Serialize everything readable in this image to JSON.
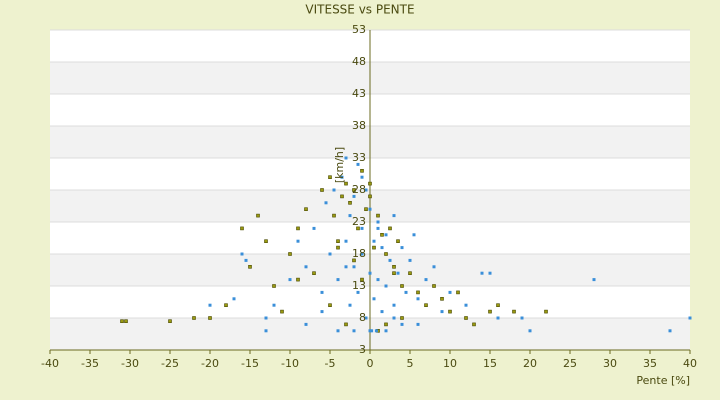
{
  "chart_data": {
    "type": "scatter",
    "title": "VITESSE vs PENTE",
    "y_label": "[km/h]",
    "x_label": "Pente [%]",
    "xlim": [
      -40,
      40
    ],
    "xticks": [
      -40,
      -35,
      -30,
      -25,
      -20,
      -15,
      -10,
      -5,
      0,
      5,
      10,
      15,
      20,
      25,
      30,
      35,
      40
    ],
    "ylim": [
      3,
      53
    ],
    "yticks": [
      3,
      8,
      13,
      18,
      23,
      28,
      33,
      38,
      43,
      48,
      53
    ],
    "grid": true,
    "series": [
      {
        "color": "#9a9a10",
        "x": [
          -31,
          -30.5,
          -25,
          -22,
          -20,
          -18,
          -15,
          -14,
          -13,
          -12,
          -11,
          -10,
          -9,
          -8,
          -7,
          -6,
          -5,
          -4.5,
          -4,
          -3.5,
          -3,
          -2.5,
          -2,
          -1.5,
          -1,
          -0.5,
          0,
          0.5,
          1,
          1.5,
          2,
          2.5,
          3,
          3.5,
          4,
          5,
          6,
          7,
          8,
          9,
          10,
          11,
          12,
          13,
          15,
          16,
          18,
          22,
          -5,
          -3,
          -2,
          0,
          1,
          2,
          4,
          -16,
          -9,
          -4,
          -1,
          3
        ],
        "values": [
          7.5,
          7.5,
          7.5,
          8,
          8,
          10,
          16,
          24,
          20,
          13,
          9,
          18,
          22,
          25,
          15,
          28,
          30,
          24,
          20,
          27,
          29,
          26,
          28,
          22,
          31,
          25,
          27,
          19,
          24,
          21,
          18,
          22,
          16,
          20,
          13,
          15,
          12,
          10,
          13,
          11,
          9,
          12,
          8,
          7,
          9,
          10,
          9,
          9,
          10,
          7,
          17,
          29,
          6,
          7,
          8,
          22,
          14,
          19,
          14,
          15
        ]
      },
      {
        "color": "#3a8fd9",
        "x": [
          -16,
          -15.5,
          -13,
          -12,
          -10,
          -9,
          -8,
          -7,
          -6,
          -5.5,
          -5,
          -4.5,
          -4,
          -3.5,
          -3,
          -3,
          -2.5,
          -2.5,
          -2,
          -2,
          -1.5,
          -1.5,
          -1,
          -1,
          -0.5,
          -0.5,
          0,
          0,
          0,
          0.5,
          0.5,
          1,
          1,
          1.5,
          1.5,
          2,
          2,
          2.5,
          3,
          3,
          3.5,
          4,
          4.5,
          5,
          5.5,
          6,
          7,
          8,
          9,
          10,
          12,
          14,
          15,
          16,
          19,
          20,
          28,
          37.5,
          40,
          -20,
          -17,
          -13,
          -8,
          -4,
          -2,
          0.2,
          0.8,
          2,
          4,
          6,
          -6,
          -3,
          -1,
          1,
          3
        ],
        "values": [
          18,
          17,
          8,
          10,
          14,
          20,
          16,
          22,
          12,
          26,
          18,
          28,
          14,
          30,
          33,
          20,
          24,
          10,
          27,
          16,
          32,
          12,
          22,
          18,
          28,
          8,
          25,
          15,
          6,
          20,
          11,
          23,
          14,
          19,
          9,
          21,
          13,
          17,
          24,
          10,
          15,
          19,
          12,
          17,
          21,
          11,
          14,
          16,
          9,
          12,
          10,
          15,
          15,
          8,
          8,
          6,
          14,
          6,
          8,
          10,
          11,
          6,
          7,
          6,
          6,
          6,
          6,
          6,
          7,
          7,
          9,
          16,
          30,
          22,
          8
        ]
      }
    ]
  }
}
